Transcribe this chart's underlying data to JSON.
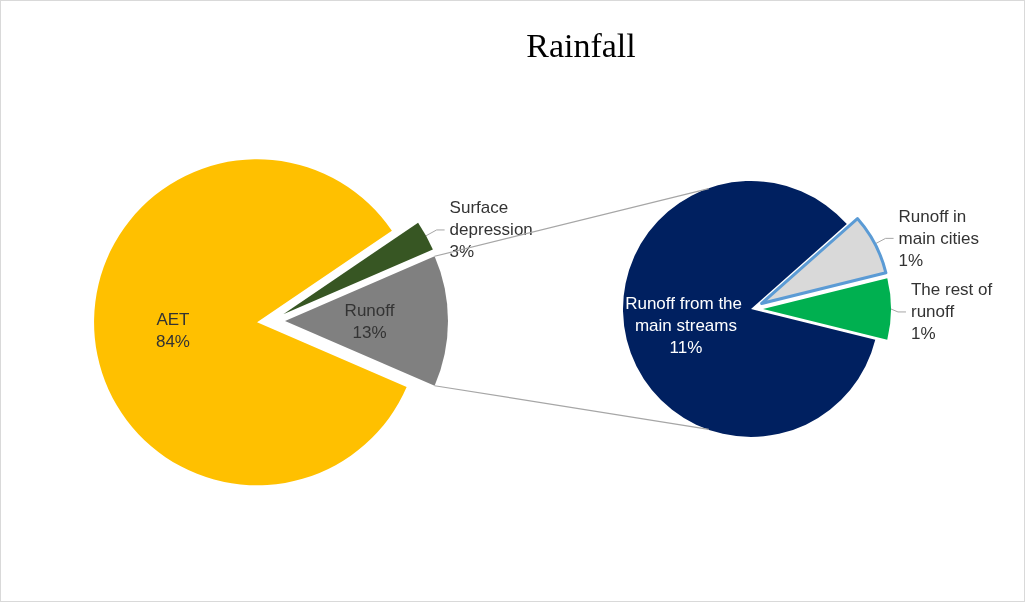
{
  "chart_data": [
    {
      "type": "pie",
      "title": "Rainfall",
      "categories": [
        "Surface depression",
        "Runoff",
        "AET"
      ],
      "values": [
        3,
        13,
        84
      ],
      "colors": [
        "#375623",
        "#808080",
        "#ffc000"
      ],
      "value_labels": [
        "3%",
        "13%",
        "84%"
      ]
    },
    {
      "type": "pie",
      "categories": [
        "Runoff in main cities",
        "The rest of runoff",
        "Runoff from the main streams"
      ],
      "values": [
        1,
        1,
        11
      ],
      "colors": [
        "#d9d9d9",
        "#00b050",
        "#002060"
      ],
      "value_labels": [
        "1%",
        "1%",
        "11%"
      ]
    }
  ]
}
